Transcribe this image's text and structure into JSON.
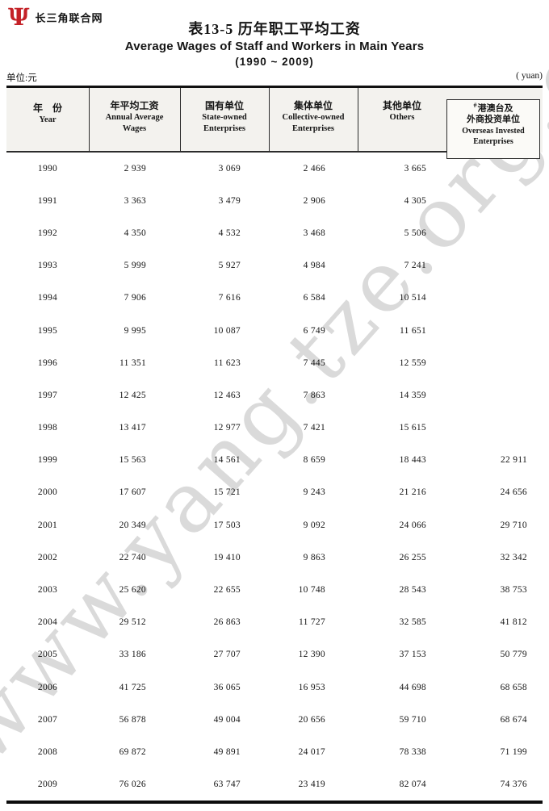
{
  "page": {
    "site_name": "长三角联合网",
    "logo_glyph": "Ψ",
    "logo_color": "#c42127",
    "title_cn": "表13-5  历年职工平均工资",
    "title_en": "Average Wages of Staff and Workers in Main Years",
    "title_years": "(1990 ~ 2009)",
    "unit_left": "单位:元",
    "unit_right": "( yuan)",
    "watermark": "www.yang.tze.org.c"
  },
  "table": {
    "columns": [
      {
        "cn": "年　份",
        "en": "Year"
      },
      {
        "cn": "年平均工资",
        "en": "Annual Average",
        "en2": "Wages"
      },
      {
        "cn": "国有单位",
        "en": "State-owned",
        "en2": "Enterprises"
      },
      {
        "cn": "集体单位",
        "en": "Collective-owned",
        "en2": "Enterprises"
      },
      {
        "cn": "其他单位",
        "en": "Others"
      },
      {
        "hash": "#",
        "cn": "港澳台及",
        "cn2": "外商投资单位",
        "en": "Overseas Invested",
        "en2": "Enterprises"
      }
    ],
    "rows": [
      {
        "y": "1990",
        "avg": "2 939",
        "soe": "3 069",
        "coll": "2 466",
        "oth": "3 665",
        "ovs": ""
      },
      {
        "y": "1991",
        "avg": "3 363",
        "soe": "3 479",
        "coll": "2 906",
        "oth": "4 305",
        "ovs": ""
      },
      {
        "y": "1992",
        "avg": "4 350",
        "soe": "4 532",
        "coll": "3 468",
        "oth": "5 506",
        "ovs": ""
      },
      {
        "y": "1993",
        "avg": "5 999",
        "soe": "5 927",
        "coll": "4 984",
        "oth": "7 241",
        "ovs": ""
      },
      {
        "y": "1994",
        "avg": "7 906",
        "soe": "7 616",
        "coll": "6 584",
        "oth": "10 514",
        "ovs": ""
      },
      {
        "y": "1995",
        "avg": "9 995",
        "soe": "10 087",
        "coll": "6 749",
        "oth": "11 651",
        "ovs": ""
      },
      {
        "y": "1996",
        "avg": "11 351",
        "soe": "11 623",
        "coll": "7 445",
        "oth": "12 559",
        "ovs": ""
      },
      {
        "y": "1997",
        "avg": "12 425",
        "soe": "12 463",
        "coll": "7 863",
        "oth": "14 359",
        "ovs": ""
      },
      {
        "y": "1998",
        "avg": "13 417",
        "soe": "12 977",
        "coll": "7 421",
        "oth": "15 615",
        "ovs": ""
      },
      {
        "y": "1999",
        "avg": "15 563",
        "soe": "14 561",
        "coll": "8 659",
        "oth": "18 443",
        "ovs": "22 911"
      },
      {
        "y": "2000",
        "avg": "17 607",
        "soe": "15 721",
        "coll": "9 243",
        "oth": "21 216",
        "ovs": "24 656"
      },
      {
        "y": "2001",
        "avg": "20 349",
        "soe": "17 503",
        "coll": "9 092",
        "oth": "24 066",
        "ovs": "29 710"
      },
      {
        "y": "2002",
        "avg": "22 740",
        "soe": "19 410",
        "coll": "9 863",
        "oth": "26 255",
        "ovs": "32 342"
      },
      {
        "y": "2003",
        "avg": "25 620",
        "soe": "22 655",
        "coll": "10 748",
        "oth": "28 543",
        "ovs": "38 753"
      },
      {
        "y": "2004",
        "avg": "29 512",
        "soe": "26 863",
        "coll": "11 727",
        "oth": "32 585",
        "ovs": "41 812"
      },
      {
        "y": "2005",
        "avg": "33 186",
        "soe": "27 707",
        "coll": "12 390",
        "oth": "37 153",
        "ovs": "50 779"
      },
      {
        "y": "2006",
        "avg": "41 725",
        "soe": "36 065",
        "coll": "16 953",
        "oth": "44 698",
        "ovs": "68 658"
      },
      {
        "y": "2007",
        "avg": "56 878",
        "soe": "49 004",
        "coll": "20 656",
        "oth": "59 710",
        "ovs": "68 674"
      },
      {
        "y": "2008",
        "avg": "69 872",
        "soe": "49 891",
        "coll": "24 017",
        "oth": "78 338",
        "ovs": "71 199"
      },
      {
        "y": "2009",
        "avg": "76 026",
        "soe": "63 747",
        "coll": "23 419",
        "oth": "82 074",
        "ovs": "74 376"
      }
    ]
  }
}
